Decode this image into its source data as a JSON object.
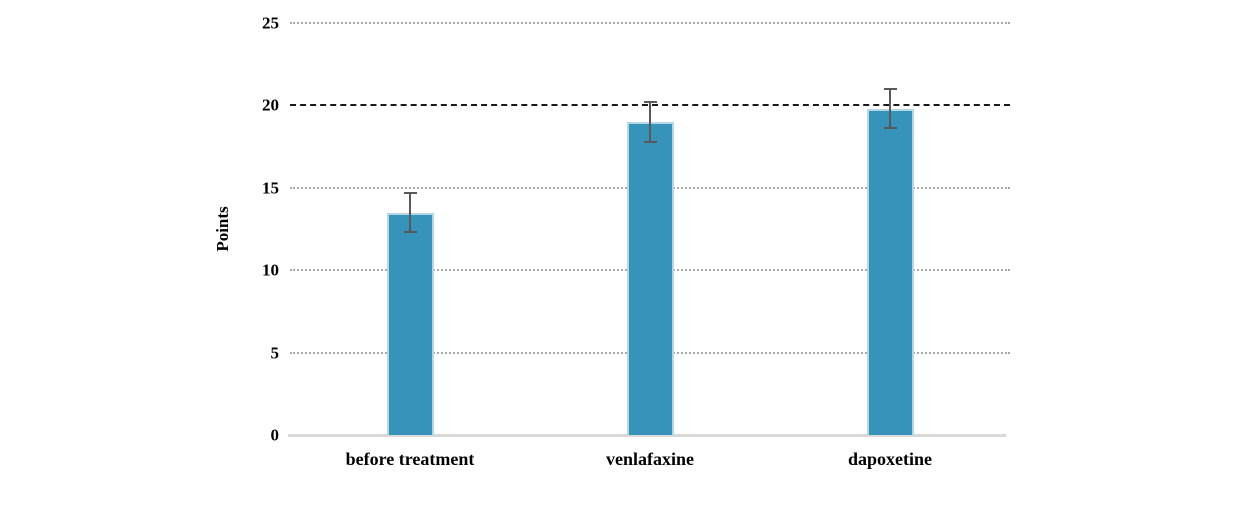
{
  "chart_data": {
    "type": "bar",
    "title": "",
    "categories": [
      "before treatment",
      "venlafaxine",
      "dapoxetine"
    ],
    "values": [
      13.5,
      19.0,
      19.8
    ],
    "error_bars": [
      1.2,
      1.2,
      1.2
    ],
    "xlabel": "",
    "ylabel": "Points",
    "ylim": [
      0,
      25
    ],
    "yticks": [
      0,
      5,
      10,
      15,
      20,
      25
    ],
    "grid": "horizontal-dotted",
    "emphasized_gridline_value": 20,
    "legend_position": "none",
    "bar_color": "#3793BA",
    "bar_border_color": "#B5D7E5",
    "error_bar_color": "#595959",
    "gridline_color": "#A9A9A9",
    "emphasized_gridline_color": "#1a1a1a",
    "axis_line_color": "#D9D9D9",
    "text_color": "#000000"
  }
}
